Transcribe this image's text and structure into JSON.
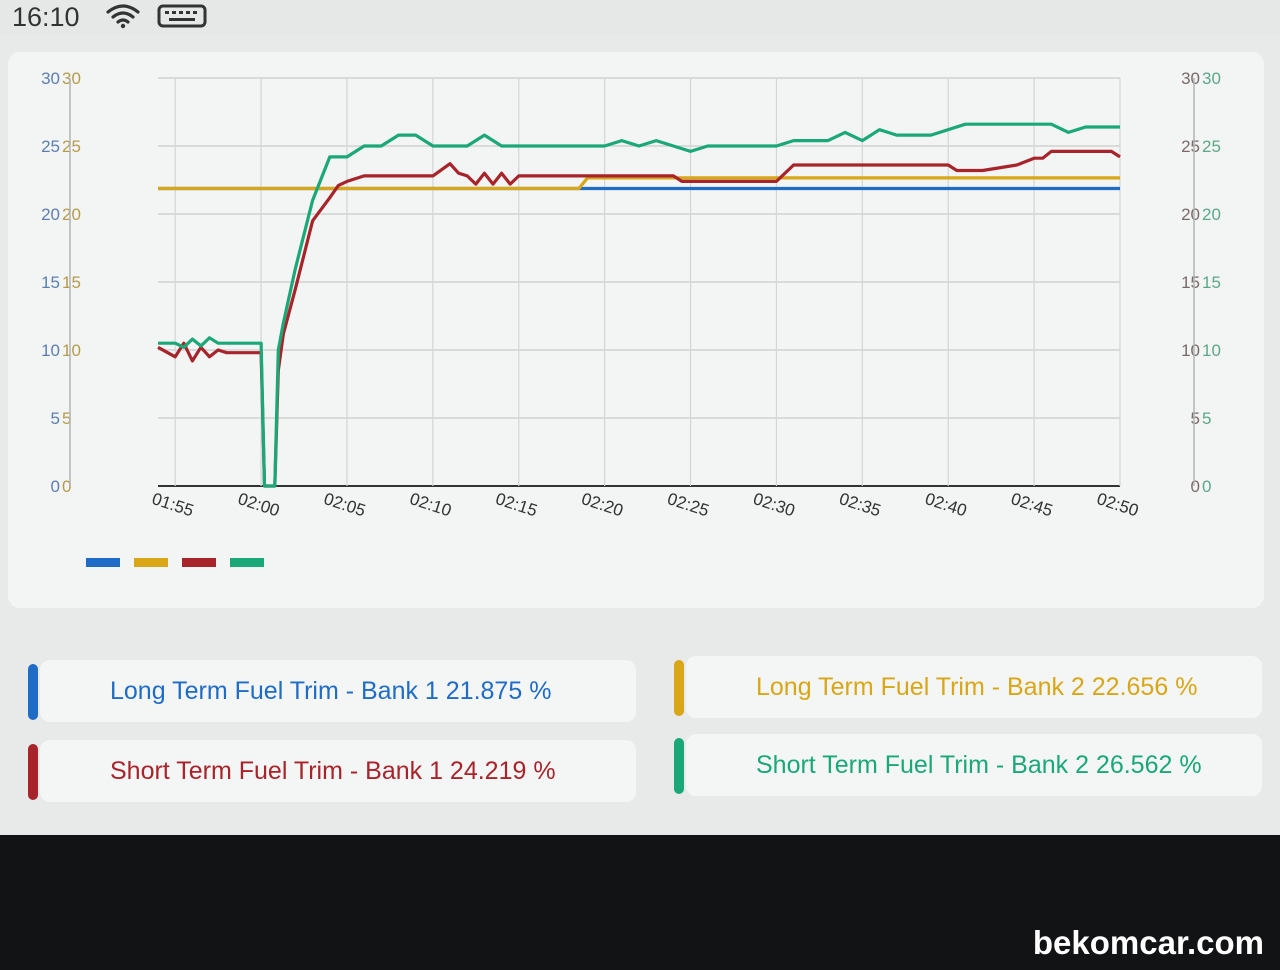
{
  "status_bar": {
    "time": "16:10",
    "icons": [
      "wifi-icon",
      "keyboard-icon"
    ]
  },
  "colors": {
    "ltft_b1": "#1f6cc7",
    "ltft_b2": "#d8a616",
    "stft_b1": "#a8242b",
    "stft_b2": "#1aa878"
  },
  "chart_data": {
    "type": "line",
    "title": "",
    "xlabel": "",
    "ylabel": "",
    "ylim": [
      0,
      30
    ],
    "y_ticks": [
      "0",
      "5",
      "10",
      "15",
      "20",
      "25",
      "30"
    ],
    "x_tick_labels": [
      "01:55",
      "02:00",
      "02:05",
      "02:10",
      "02:15",
      "02:20",
      "02:25",
      "02:30",
      "02:35",
      "02:40",
      "02:45",
      "02:50"
    ],
    "x_range_minutes": [
      -1,
      55
    ],
    "grid": true,
    "series": [
      {
        "key": "ltft_b1",
        "x": [
          -1,
          24,
          24.5,
          55
        ],
        "y": [
          21.875,
          21.875,
          21.875,
          21.875
        ]
      },
      {
        "key": "ltft_b2",
        "x": [
          -1,
          23.5,
          24,
          55
        ],
        "y": [
          21.875,
          21.875,
          22.656,
          22.656
        ]
      },
      {
        "key": "stft_b1",
        "x": [
          -1,
          0,
          0.5,
          1,
          1.5,
          2,
          2.5,
          3,
          4,
          5,
          5.2,
          5.8,
          6,
          6.3,
          7,
          8,
          9,
          9.5,
          10,
          11,
          12,
          15,
          16,
          16.5,
          17,
          17.5,
          18,
          18.5,
          19,
          19.5,
          20,
          25,
          29,
          29.5,
          35,
          36,
          37.5,
          38,
          41,
          42,
          43,
          44,
          45,
          45.5,
          46,
          47,
          49,
          50,
          50.5,
          51,
          54,
          54.5,
          55
        ],
        "y": [
          10.2,
          9.5,
          10.5,
          9.2,
          10.2,
          9.5,
          10.0,
          9.8,
          9.8,
          9.8,
          0,
          0,
          8.5,
          11.2,
          14.5,
          19.5,
          21.2,
          22.1,
          22.4,
          22.8,
          22.8,
          22.8,
          23.7,
          23.0,
          22.8,
          22.2,
          23.0,
          22.2,
          23.0,
          22.2,
          22.8,
          22.8,
          22.8,
          22.4,
          22.4,
          23.6,
          23.6,
          23.6,
          23.6,
          23.6,
          23.6,
          23.6,
          23.6,
          23.2,
          23.2,
          23.2,
          23.6,
          24.1,
          24.1,
          24.6,
          24.6,
          24.6,
          24.2
        ]
      },
      {
        "key": "stft_b2",
        "x": [
          -1,
          0,
          0.5,
          1,
          1.5,
          2,
          2.5,
          3,
          3.5,
          4,
          5,
          5.2,
          5.8,
          6,
          6.3,
          7,
          8,
          9,
          10,
          11,
          12,
          13,
          14,
          15,
          16,
          17,
          18,
          19,
          20,
          21,
          22,
          23,
          25,
          26,
          27,
          28,
          29,
          30,
          31,
          33,
          35,
          36,
          38,
          39,
          40,
          41,
          42,
          44,
          46,
          48,
          50,
          51,
          52,
          53,
          55
        ],
        "y": [
          10.5,
          10.5,
          10.2,
          10.8,
          10.3,
          10.9,
          10.5,
          10.5,
          10.5,
          10.5,
          10.5,
          0,
          0,
          10,
          12,
          16,
          21,
          24.2,
          24.2,
          25.0,
          25.0,
          25.8,
          25.8,
          25.0,
          25.0,
          25.0,
          25.8,
          25.0,
          25.0,
          25.0,
          25.0,
          25.0,
          25.0,
          25.4,
          25.0,
          25.4,
          25.0,
          24.6,
          25.0,
          25.0,
          25.0,
          25.4,
          25.4,
          26.0,
          25.4,
          26.2,
          25.8,
          25.8,
          26.6,
          26.6,
          26.6,
          26.6,
          26.0,
          26.4,
          26.4
        ]
      }
    ]
  },
  "tiles": [
    {
      "key": "ltft_b1",
      "text": "Long Term Fuel Trim - Bank 1 21.875 %"
    },
    {
      "key": "ltft_b2",
      "text": "Long Term Fuel Trim - Bank 2 22.656 %"
    },
    {
      "key": "stft_b1",
      "text": "Short Term Fuel Trim - Bank 1 24.219 %"
    },
    {
      "key": "stft_b2",
      "text": "Short Term Fuel Trim - Bank 2 26.562 %"
    }
  ],
  "watermark": "bekomcar.com"
}
